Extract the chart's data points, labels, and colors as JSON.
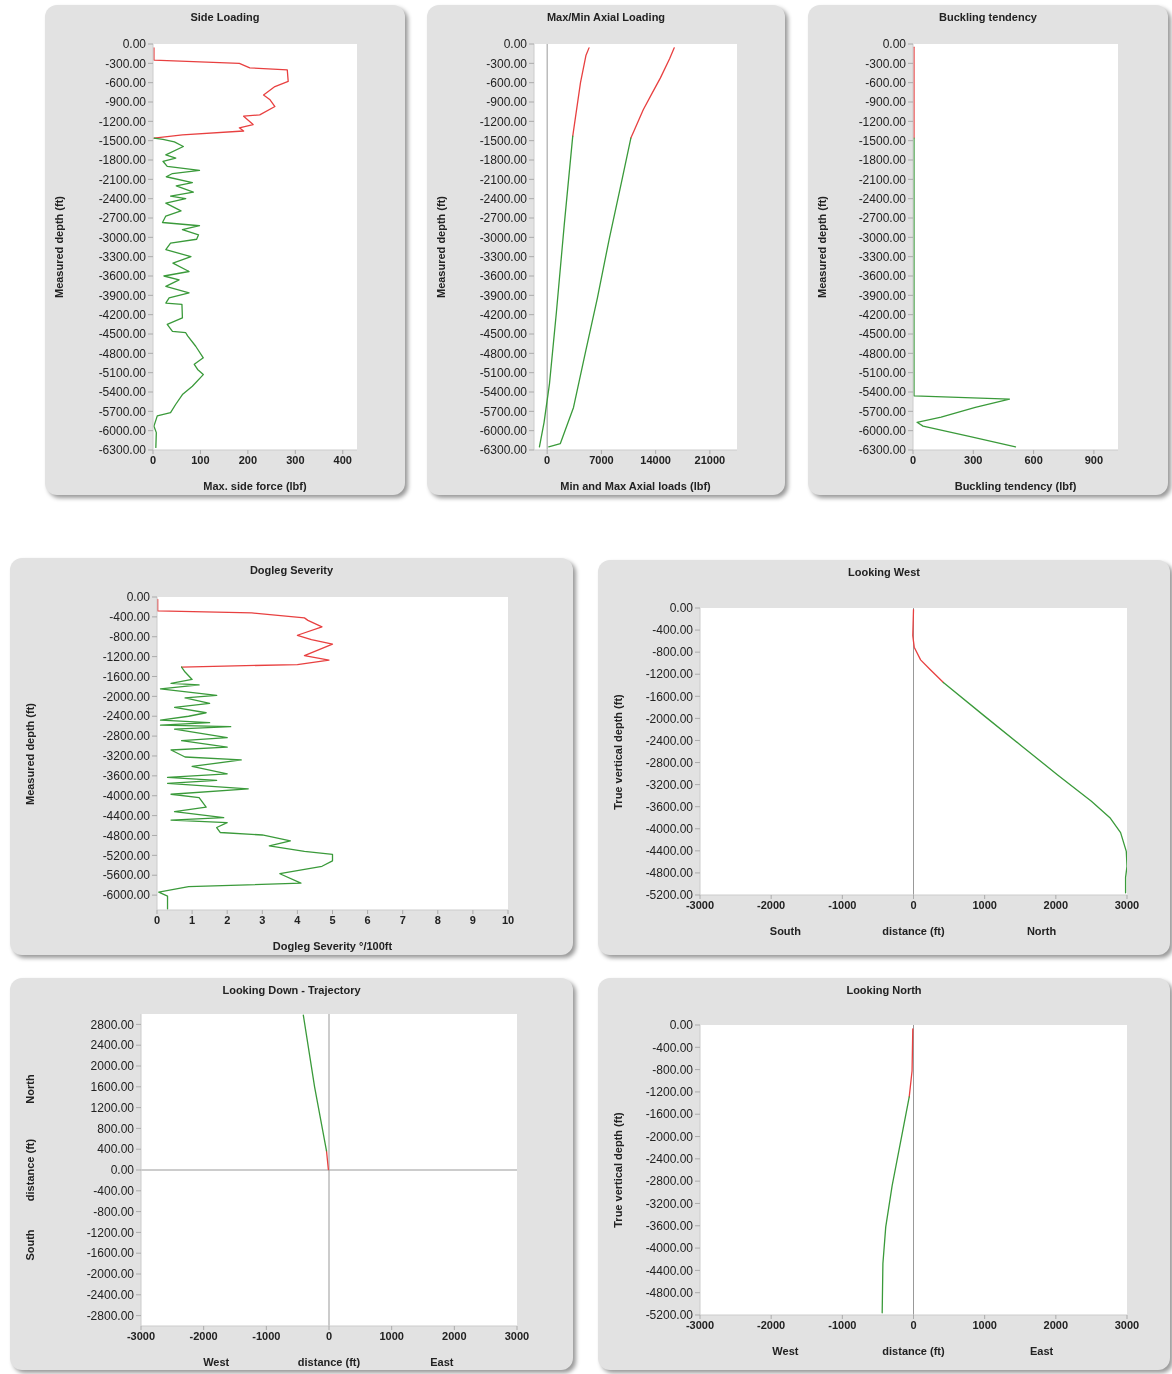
{
  "chart_data": [
    {
      "type": "line",
      "title": "Side Loading",
      "xlabel": "Max. side force (lbf)",
      "ylabel": "Measured depth (ft)",
      "xlim": [
        0,
        430
      ],
      "ylim": [
        -6300,
        0
      ],
      "xticks": [
        0,
        100,
        200,
        300,
        400
      ],
      "yticks": [
        {
          "value": 0,
          "label": "0.00"
        },
        {
          "value": -300,
          "label": "-300.00"
        },
        {
          "value": -600,
          "label": "-600.00"
        },
        {
          "value": -900,
          "label": "-900.00"
        },
        {
          "value": -1200,
          "label": "-1200.00"
        },
        {
          "value": -1500,
          "label": "-1500.00"
        },
        {
          "value": -1800,
          "label": "-1800.00"
        },
        {
          "value": -2100,
          "label": "-2100.00"
        },
        {
          "value": -2400,
          "label": "-2400.00"
        },
        {
          "value": -2700,
          "label": "-2700.00"
        },
        {
          "value": -3000,
          "label": "-3000.00"
        },
        {
          "value": -3300,
          "label": "-3300.00"
        },
        {
          "value": -3600,
          "label": "-3600.00"
        },
        {
          "value": -3900,
          "label": "-3900.00"
        },
        {
          "value": -4200,
          "label": "-4200.00"
        },
        {
          "value": -4500,
          "label": "-4500.00"
        },
        {
          "value": -4800,
          "label": "-4800.00"
        },
        {
          "value": -5100,
          "label": "-5100.00"
        },
        {
          "value": -5400,
          "label": "-5400.00"
        },
        {
          "value": -5700,
          "label": "-5700.00"
        },
        {
          "value": -6000,
          "label": "-6000.00"
        },
        {
          "value": -6300,
          "label": "-6300.00"
        }
      ],
      "series": [
        {
          "color": "#e84040",
          "x": [
            2,
            2,
            182,
            204,
            283,
            285,
            257,
            233,
            246,
            257,
            225,
            191,
            211,
            182,
            191,
            62,
            2
          ],
          "values": [
            -60,
            -250,
            -300,
            -370,
            -400,
            -580,
            -660,
            -790,
            -860,
            -970,
            -1100,
            -1120,
            -1250,
            -1300,
            -1350,
            -1410,
            -1460
          ]
        },
        {
          "color": "#3a9a3a",
          "x": [
            2,
            21,
            45,
            64,
            27,
            48,
            21,
            30,
            98,
            41,
            28,
            83,
            49,
            85,
            37,
            69,
            27,
            59,
            27,
            20,
            98,
            62,
            96,
            92,
            37,
            27,
            80,
            42,
            76,
            23,
            55,
            27,
            76,
            34,
            27,
            61,
            62,
            30,
            41,
            69,
            73,
            90,
            106,
            87,
            94,
            106,
            83,
            62,
            48,
            37,
            9,
            2,
            7,
            6
          ],
          "values": [
            -1460,
            -1480,
            -1520,
            -1590,
            -1720,
            -1770,
            -1820,
            -1900,
            -1960,
            -2010,
            -2060,
            -2150,
            -2200,
            -2300,
            -2360,
            -2400,
            -2470,
            -2590,
            -2670,
            -2770,
            -2820,
            -2880,
            -2960,
            -3030,
            -3090,
            -3190,
            -3300,
            -3400,
            -3530,
            -3600,
            -3660,
            -3760,
            -3860,
            -3940,
            -4020,
            -4040,
            -4250,
            -4350,
            -4460,
            -4480,
            -4530,
            -4690,
            -4870,
            -4970,
            -5050,
            -5130,
            -5310,
            -5440,
            -5590,
            -5720,
            -5770,
            -5930,
            -6030,
            -6260
          ]
        }
      ]
    },
    {
      "type": "line",
      "title": "Max/Min Axial Loading",
      "xlabel": "Min and Max Axial loads (lbf)",
      "ylabel": "Measured depth (ft)",
      "xlim": [
        -1700,
        24500
      ],
      "ylim": [
        -6300,
        0
      ],
      "xticks": [
        0,
        7000,
        14000,
        21000
      ],
      "yticks": [
        {
          "value": 0,
          "label": "0.00"
        },
        {
          "value": -300,
          "label": "-300.00"
        },
        {
          "value": -600,
          "label": "-600.00"
        },
        {
          "value": -900,
          "label": "-900.00"
        },
        {
          "value": -1200,
          "label": "-1200.00"
        },
        {
          "value": -1500,
          "label": "-1500.00"
        },
        {
          "value": -1800,
          "label": "-1800.00"
        },
        {
          "value": -2100,
          "label": "-2100.00"
        },
        {
          "value": -2400,
          "label": "-2400.00"
        },
        {
          "value": -2700,
          "label": "-2700.00"
        },
        {
          "value": -3000,
          "label": "-3000.00"
        },
        {
          "value": -3300,
          "label": "-3300.00"
        },
        {
          "value": -3600,
          "label": "-3600.00"
        },
        {
          "value": -3900,
          "label": "-3900.00"
        },
        {
          "value": -4200,
          "label": "-4200.00"
        },
        {
          "value": -4500,
          "label": "-4500.00"
        },
        {
          "value": -4800,
          "label": "-4800.00"
        },
        {
          "value": -5100,
          "label": "-5100.00"
        },
        {
          "value": -5400,
          "label": "-5400.00"
        },
        {
          "value": -5700,
          "label": "-5700.00"
        },
        {
          "value": -6000,
          "label": "-6000.00"
        },
        {
          "value": -6300,
          "label": "-6300.00"
        }
      ],
      "ref_lines": [
        {
          "axis": "x",
          "value": 0,
          "color": "#999999"
        }
      ],
      "series": [
        {
          "color": "#e84040",
          "x": [
            5400,
            5000,
            4300,
            3300
          ],
          "values": [
            -60,
            -180,
            -600,
            -1430
          ]
        },
        {
          "color": "#3a9a3a",
          "x": [
            3300,
            2200,
            1200,
            300,
            -400,
            -1000
          ],
          "values": [
            -1430,
            -2810,
            -4150,
            -5270,
            -5870,
            -6250
          ]
        },
        {
          "color": "#e84040",
          "x": [
            16400,
            15800,
            14600,
            13600,
            12400,
            11200,
            10800
          ],
          "values": [
            -60,
            -230,
            -530,
            -750,
            -1020,
            -1350,
            -1460
          ]
        },
        {
          "color": "#3a9a3a",
          "x": [
            10800,
            9600,
            8000,
            6500,
            5000,
            3400,
            1700,
            200
          ],
          "values": [
            -1460,
            -2140,
            -3030,
            -3930,
            -4750,
            -5640,
            -6200,
            -6250
          ]
        }
      ]
    },
    {
      "type": "line",
      "title": "Buckling tendency",
      "xlabel": "Buckling tendency (lbf)",
      "ylabel": "Measured depth (ft)",
      "xlim": [
        0,
        1020
      ],
      "ylim": [
        -6300,
        0
      ],
      "xticks": [
        0,
        300,
        600,
        900
      ],
      "yticks": [
        {
          "value": 0,
          "label": "0.00"
        },
        {
          "value": -300,
          "label": "-300.00"
        },
        {
          "value": -600,
          "label": "-600.00"
        },
        {
          "value": -900,
          "label": "-900.00"
        },
        {
          "value": -1200,
          "label": "-1200.00"
        },
        {
          "value": -1500,
          "label": "-1500.00"
        },
        {
          "value": -1800,
          "label": "-1800.00"
        },
        {
          "value": -2100,
          "label": "-2100.00"
        },
        {
          "value": -2400,
          "label": "-2400.00"
        },
        {
          "value": -2700,
          "label": "-2700.00"
        },
        {
          "value": -3000,
          "label": "-3000.00"
        },
        {
          "value": -3300,
          "label": "-3300.00"
        },
        {
          "value": -3600,
          "label": "-3600.00"
        },
        {
          "value": -3900,
          "label": "-3900.00"
        },
        {
          "value": -4200,
          "label": "-4200.00"
        },
        {
          "value": -4500,
          "label": "-4500.00"
        },
        {
          "value": -4800,
          "label": "-4800.00"
        },
        {
          "value": -5100,
          "label": "-5100.00"
        },
        {
          "value": -5400,
          "label": "-5400.00"
        },
        {
          "value": -5700,
          "label": "-5700.00"
        },
        {
          "value": -6000,
          "label": "-6000.00"
        },
        {
          "value": -6300,
          "label": "-6300.00"
        }
      ],
      "series": [
        {
          "color": "#e84040",
          "x": [
            5,
            5
          ],
          "values": [
            -50,
            -1460
          ]
        },
        {
          "color": "#3a9a3a",
          "x": [
            5,
            5,
            480,
            310,
            140,
            20,
            50,
            280,
            510
          ],
          "values": [
            -1460,
            -5460,
            -5510,
            -5640,
            -5790,
            -5870,
            -5930,
            -6090,
            -6250
          ]
        }
      ]
    },
    {
      "type": "line",
      "title": "Dogleg Severity",
      "xlabel": "Dogleg Severity °/100ft",
      "ylabel": "Measured depth (ft)",
      "xlim": [
        0,
        10
      ],
      "ylim": [
        -6300,
        0
      ],
      "xticks": [
        0,
        1,
        2,
        3,
        4,
        5,
        6,
        7,
        8,
        9,
        10
      ],
      "yticks": [
        {
          "value": 0,
          "label": "0.00"
        },
        {
          "value": -400,
          "label": "-400.00"
        },
        {
          "value": -800,
          "label": "-800.00"
        },
        {
          "value": -1200,
          "label": "-1200.00"
        },
        {
          "value": -1600,
          "label": "-1600.00"
        },
        {
          "value": -2000,
          "label": "-2000.00"
        },
        {
          "value": -2400,
          "label": "-2400.00"
        },
        {
          "value": -2800,
          "label": "-2800.00"
        },
        {
          "value": -3200,
          "label": "-3200.00"
        },
        {
          "value": -3600,
          "label": "-3600.00"
        },
        {
          "value": -4000,
          "label": "-4000.00"
        },
        {
          "value": -4400,
          "label": "-4400.00"
        },
        {
          "value": -4800,
          "label": "-4800.00"
        },
        {
          "value": -5200,
          "label": "-5200.00"
        },
        {
          "value": -5600,
          "label": "-5600.00"
        },
        {
          "value": -6000,
          "label": "-6000.00"
        }
      ],
      "series": [
        {
          "color": "#e84040",
          "x": [
            0.02,
            0.02,
            2.7,
            4.2,
            4.3,
            4.7,
            4.0,
            4.4,
            5.0,
            4.2,
            4.9,
            4.0,
            0.7
          ],
          "values": [
            -50,
            -280,
            -320,
            -420,
            -470,
            -600,
            -770,
            -860,
            -950,
            -1180,
            -1270,
            -1360,
            -1410
          ]
        },
        {
          "color": "#3a9a3a",
          "x": [
            0.7,
            0.8,
            1.0,
            0.4,
            1.2,
            0.1,
            1.7,
            0.8,
            1.5,
            0.5,
            1.4,
            0.9,
            0.1,
            1.5,
            0.1,
            2.1,
            0.5,
            2.0,
            0.7,
            2.0,
            0.4,
            0.8,
            2.4,
            1.0,
            2.0,
            0.3,
            1.7,
            0.3,
            2.6,
            0.4,
            1.2,
            1.4,
            0.5,
            1.9,
            0.4,
            2.0,
            1.7,
            1.8,
            3.0,
            3.8,
            3.2,
            4.2,
            5.0,
            5.0,
            4.7,
            3.5,
            4.1,
            0.9,
            0.05,
            0.3,
            0.3
          ],
          "values": [
            -1410,
            -1510,
            -1660,
            -1740,
            -1770,
            -1850,
            -1980,
            -2030,
            -2140,
            -2220,
            -2330,
            -2400,
            -2480,
            -2530,
            -2580,
            -2610,
            -2660,
            -2830,
            -2890,
            -3020,
            -3080,
            -3220,
            -3280,
            -3410,
            -3560,
            -3630,
            -3690,
            -3750,
            -3860,
            -3970,
            -4040,
            -4230,
            -4320,
            -4440,
            -4490,
            -4540,
            -4640,
            -4740,
            -4790,
            -4910,
            -5010,
            -5120,
            -5180,
            -5310,
            -5420,
            -5570,
            -5760,
            -5830,
            -5940,
            -6020,
            -6280
          ]
        }
      ]
    },
    {
      "type": "line",
      "title": "Looking West",
      "xlabel": "distance (ft)",
      "ylabel": "True vertical depth (ft)",
      "annotations": [
        "South",
        "North"
      ],
      "xlim": [
        -3000,
        3000
      ],
      "ylim": [
        -5200,
        0
      ],
      "xticks": [
        -3000,
        -2000,
        -1000,
        0,
        1000,
        2000,
        3000
      ],
      "yticks": [
        {
          "value": 0,
          "label": "0.00"
        },
        {
          "value": -400,
          "label": "-400.00"
        },
        {
          "value": -800,
          "label": "-800.00"
        },
        {
          "value": -1200,
          "label": "-1200.00"
        },
        {
          "value": -1600,
          "label": "-1600.00"
        },
        {
          "value": -2000,
          "label": "-2000.00"
        },
        {
          "value": -2400,
          "label": "-2400.00"
        },
        {
          "value": -2800,
          "label": "-2800.00"
        },
        {
          "value": -3200,
          "label": "-3200.00"
        },
        {
          "value": -3600,
          "label": "-3600.00"
        },
        {
          "value": -4000,
          "label": "-4000.00"
        },
        {
          "value": -4400,
          "label": "-4400.00"
        },
        {
          "value": -4800,
          "label": "-4800.00"
        },
        {
          "value": -5200,
          "label": "-5200.00"
        }
      ],
      "ref_lines": [
        {
          "axis": "x",
          "value": 0,
          "color": "#999999"
        }
      ],
      "series": [
        {
          "color": "#e84040",
          "x": [
            0,
            -10,
            10,
            100,
            230,
            420
          ],
          "values": [
            -30,
            -500,
            -710,
            -940,
            -1110,
            -1350
          ]
        },
        {
          "color": "#3a9a3a",
          "x": [
            420,
            990,
            1510,
            2030,
            2500,
            2760,
            2910,
            2990,
            3000,
            2980,
            2980
          ],
          "values": [
            -1350,
            -1950,
            -2490,
            -3030,
            -3500,
            -3800,
            -4070,
            -4410,
            -4680,
            -4880,
            -5160
          ]
        }
      ]
    },
    {
      "type": "line",
      "title": "Looking Down - Trajectory",
      "xlabel": "distance (ft)",
      "ylabel": "distance (ft)",
      "annotations": [
        "West",
        "East",
        "North",
        "South"
      ],
      "xlim": [
        -3000,
        3000
      ],
      "ylim": [
        -3000,
        3000
      ],
      "xticks": [
        -3000,
        -2000,
        -1000,
        0,
        1000,
        2000,
        3000
      ],
      "yticks": [
        {
          "value": 2800,
          "label": "2800.00"
        },
        {
          "value": 2400,
          "label": "2400.00"
        },
        {
          "value": 2000,
          "label": "2000.00"
        },
        {
          "value": 1600,
          "label": "1600.00"
        },
        {
          "value": 1200,
          "label": "1200.00"
        },
        {
          "value": 800,
          "label": "800.00"
        },
        {
          "value": 400,
          "label": "400.00"
        },
        {
          "value": 0,
          "label": "0.00"
        },
        {
          "value": -400,
          "label": "-400.00"
        },
        {
          "value": -800,
          "label": "-800.00"
        },
        {
          "value": -1200,
          "label": "-1200.00"
        },
        {
          "value": -1600,
          "label": "-1600.00"
        },
        {
          "value": -2000,
          "label": "-2000.00"
        },
        {
          "value": -2400,
          "label": "-2400.00"
        },
        {
          "value": -2800,
          "label": "-2800.00"
        }
      ],
      "ref_lines": [
        {
          "axis": "x",
          "value": 0,
          "color": "#999999"
        },
        {
          "axis": "y",
          "value": 0,
          "color": "#999999"
        }
      ],
      "series": [
        {
          "color": "#e84040",
          "x": [
            -10,
            -40
          ],
          "values": [
            10,
            370
          ]
        },
        {
          "color": "#3a9a3a",
          "x": [
            -40,
            -230,
            -410
          ],
          "values": [
            370,
            1600,
            2980
          ]
        }
      ]
    },
    {
      "type": "line",
      "title": "Looking North",
      "xlabel": "distance (ft)",
      "ylabel": "True vertical depth (ft)",
      "annotations": [
        "West",
        "East"
      ],
      "xlim": [
        -3000,
        3000
      ],
      "ylim": [
        -5200,
        0
      ],
      "xticks": [
        -3000,
        -2000,
        -1000,
        0,
        1000,
        2000,
        3000
      ],
      "yticks": [
        {
          "value": 0,
          "label": "0.00"
        },
        {
          "value": -400,
          "label": "-400.00"
        },
        {
          "value": -800,
          "label": "-800.00"
        },
        {
          "value": -1200,
          "label": "-1200.00"
        },
        {
          "value": -1600,
          "label": "-1600.00"
        },
        {
          "value": -2000,
          "label": "-2000.00"
        },
        {
          "value": -2400,
          "label": "-2400.00"
        },
        {
          "value": -2800,
          "label": "-2800.00"
        },
        {
          "value": -3200,
          "label": "-3200.00"
        },
        {
          "value": -3600,
          "label": "-3600.00"
        },
        {
          "value": -4000,
          "label": "-4000.00"
        },
        {
          "value": -4400,
          "label": "-4400.00"
        },
        {
          "value": -4800,
          "label": "-4800.00"
        },
        {
          "value": -5200,
          "label": "-5200.00"
        }
      ],
      "ref_lines": [
        {
          "axis": "x",
          "value": 0,
          "color": "#999999"
        }
      ],
      "series": [
        {
          "color": "#e84040",
          "x": [
            -10,
            -20,
            -60
          ],
          "values": [
            -70,
            -820,
            -1290
          ]
        },
        {
          "color": "#3a9a3a",
          "x": [
            -60,
            -170,
            -300,
            -390,
            -430,
            -440
          ],
          "values": [
            -1290,
            -2020,
            -2880,
            -3620,
            -4280,
            -5160
          ]
        }
      ]
    }
  ]
}
